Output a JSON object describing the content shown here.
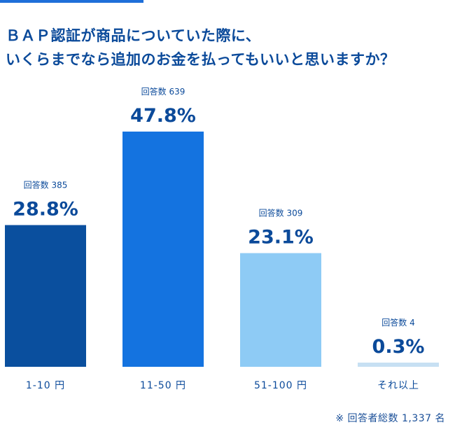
{
  "chart_data": {
    "type": "bar",
    "title_lines": [
      "ＢＡＰ認証が商品についていた際に、",
      "いくらまでなら追加のお金を払ってもいいと思いますか？"
    ],
    "categories": [
      "1-10 円",
      "11-50 円",
      "51-100 円",
      "それ以上"
    ],
    "values": [
      28.8,
      47.8,
      23.1,
      0.3
    ],
    "value_labels": [
      "28.8%",
      "47.8%",
      "23.1%",
      "0.3%"
    ],
    "count_labels": [
      "回答数 385",
      "回答数 639",
      "回答数 309",
      "回答数 4"
    ],
    "counts": [
      385,
      639,
      309,
      4
    ],
    "unit": "%",
    "colors": [
      "#0a4f9e",
      "#1473e0",
      "#8ecbf5",
      "#c7e0f3"
    ],
    "footnote": "※ 回答者総数 1,337 名"
  }
}
